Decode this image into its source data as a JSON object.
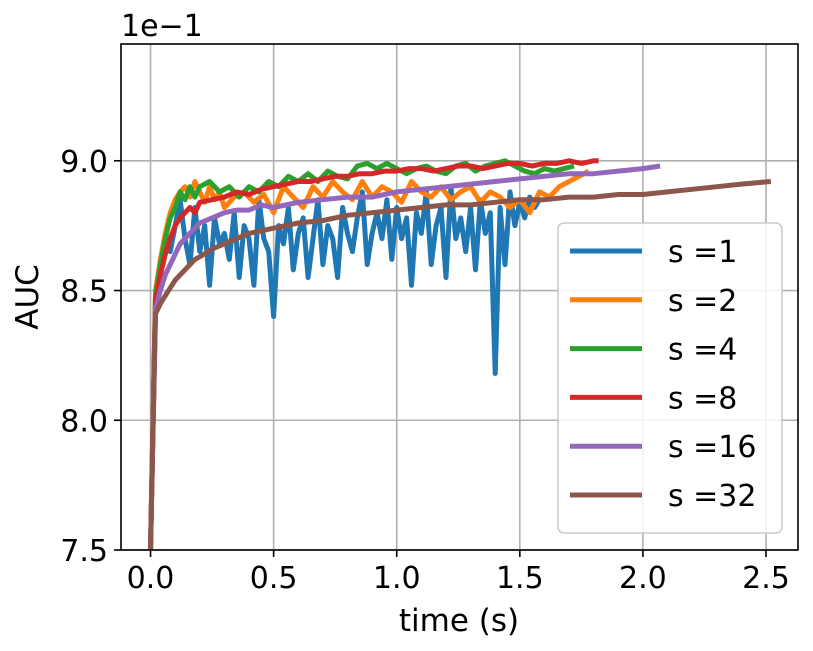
{
  "chart_data": {
    "type": "line",
    "title": "",
    "xlabel": "time (s)",
    "ylabel": "AUC",
    "y_offset_text": "1e−1",
    "xlim": [
      -0.12,
      2.63
    ],
    "ylim": [
      7.5,
      9.45
    ],
    "xticks": [
      0.0,
      0.5,
      1.0,
      1.5,
      2.0,
      2.5
    ],
    "xtick_labels": [
      "0.0",
      "0.5",
      "1.0",
      "1.5",
      "2.0",
      "2.5"
    ],
    "yticks": [
      7.5,
      8.0,
      8.5,
      9.0
    ],
    "ytick_labels": [
      "7.5",
      "8.0",
      "8.5",
      "9.0"
    ],
    "grid": true,
    "legend_position": "lower-right",
    "series": [
      {
        "name": "s =1",
        "color": "#1f77b4",
        "x": [
          0.0,
          0.02,
          0.04,
          0.06,
          0.08,
          0.1,
          0.12,
          0.14,
          0.16,
          0.18,
          0.2,
          0.22,
          0.24,
          0.26,
          0.28,
          0.3,
          0.32,
          0.34,
          0.36,
          0.38,
          0.4,
          0.42,
          0.44,
          0.46,
          0.48,
          0.5,
          0.52,
          0.54,
          0.56,
          0.58,
          0.6,
          0.62,
          0.64,
          0.66,
          0.68,
          0.7,
          0.72,
          0.74,
          0.76,
          0.78,
          0.8,
          0.82,
          0.84,
          0.86,
          0.88,
          0.9,
          0.92,
          0.94,
          0.96,
          0.98,
          1.0,
          1.02,
          1.04,
          1.06,
          1.08,
          1.1,
          1.12,
          1.14,
          1.16,
          1.18,
          1.2,
          1.22,
          1.24,
          1.26,
          1.28,
          1.3,
          1.32,
          1.34,
          1.36,
          1.38,
          1.4,
          1.42,
          1.44,
          1.46,
          1.48,
          1.5,
          1.52,
          1.54,
          1.56,
          1.58
        ],
        "y": [
          7.5,
          8.45,
          8.58,
          8.7,
          8.65,
          8.75,
          8.85,
          8.7,
          8.6,
          8.82,
          8.65,
          8.75,
          8.52,
          8.78,
          8.68,
          8.72,
          8.62,
          8.8,
          8.55,
          8.75,
          8.7,
          8.52,
          8.85,
          8.7,
          8.65,
          8.4,
          8.75,
          8.68,
          8.82,
          8.58,
          8.72,
          8.78,
          8.55,
          8.7,
          8.85,
          8.6,
          8.75,
          8.7,
          8.55,
          8.82,
          8.72,
          8.65,
          8.78,
          8.88,
          8.6,
          8.72,
          8.8,
          8.7,
          8.85,
          8.62,
          8.82,
          8.7,
          8.78,
          8.52,
          8.8,
          8.72,
          8.88,
          8.6,
          8.75,
          8.82,
          8.55,
          8.9,
          8.7,
          8.78,
          8.65,
          8.82,
          8.58,
          8.85,
          8.72,
          8.8,
          8.18,
          8.82,
          8.6,
          8.88,
          8.75,
          8.84,
          8.78,
          8.86,
          8.82,
          8.85
        ]
      },
      {
        "name": "s =2",
        "color": "#ff7f0e",
        "x": [
          0.0,
          0.02,
          0.04,
          0.06,
          0.08,
          0.1,
          0.12,
          0.14,
          0.16,
          0.18,
          0.2,
          0.22,
          0.24,
          0.26,
          0.28,
          0.3,
          0.34,
          0.38,
          0.42,
          0.46,
          0.5,
          0.54,
          0.58,
          0.62,
          0.66,
          0.7,
          0.74,
          0.78,
          0.82,
          0.86,
          0.9,
          0.94,
          0.98,
          1.02,
          1.06,
          1.1,
          1.14,
          1.18,
          1.22,
          1.26,
          1.3,
          1.34,
          1.38,
          1.42,
          1.46,
          1.5,
          1.54,
          1.58,
          1.62,
          1.66,
          1.7,
          1.74,
          1.78
        ],
        "y": [
          7.5,
          8.5,
          8.62,
          8.72,
          8.8,
          8.85,
          8.88,
          8.9,
          8.86,
          8.92,
          8.88,
          8.84,
          8.9,
          8.85,
          8.88,
          8.82,
          8.86,
          8.88,
          8.84,
          8.87,
          8.8,
          8.9,
          8.86,
          8.82,
          8.9,
          8.86,
          8.92,
          8.88,
          8.85,
          8.92,
          8.86,
          8.9,
          8.88,
          8.84,
          8.92,
          8.88,
          8.86,
          8.9,
          8.85,
          8.88,
          8.9,
          8.84,
          8.88,
          8.86,
          8.82,
          8.85,
          8.8,
          8.88,
          8.86,
          8.9,
          8.92,
          8.94,
          8.96
        ]
      },
      {
        "name": "s =4",
        "color": "#2ca02c",
        "x": [
          0.0,
          0.02,
          0.04,
          0.06,
          0.08,
          0.1,
          0.12,
          0.14,
          0.16,
          0.18,
          0.2,
          0.24,
          0.28,
          0.32,
          0.36,
          0.4,
          0.44,
          0.48,
          0.52,
          0.56,
          0.6,
          0.64,
          0.68,
          0.72,
          0.76,
          0.8,
          0.84,
          0.88,
          0.92,
          0.96,
          1.0,
          1.04,
          1.08,
          1.12,
          1.16,
          1.2,
          1.24,
          1.28,
          1.32,
          1.36,
          1.4,
          1.44,
          1.48,
          1.52,
          1.56,
          1.6,
          1.64,
          1.68,
          1.72
        ],
        "y": [
          7.5,
          8.48,
          8.6,
          8.7,
          8.78,
          8.82,
          8.88,
          8.85,
          8.9,
          8.86,
          8.9,
          8.92,
          8.88,
          8.9,
          8.86,
          8.9,
          8.88,
          8.92,
          8.9,
          8.94,
          8.92,
          8.95,
          8.92,
          8.96,
          8.94,
          8.93,
          8.98,
          8.99,
          8.97,
          8.99,
          8.97,
          8.95,
          8.97,
          8.98,
          8.96,
          8.95,
          8.98,
          8.99,
          8.96,
          8.98,
          8.99,
          9.0,
          8.98,
          8.96,
          8.95,
          8.97,
          8.96,
          8.97,
          8.98
        ]
      },
      {
        "name": "s =8",
        "color": "#d62728",
        "x": [
          0.0,
          0.02,
          0.04,
          0.06,
          0.08,
          0.1,
          0.12,
          0.14,
          0.16,
          0.18,
          0.2,
          0.25,
          0.3,
          0.35,
          0.4,
          0.45,
          0.5,
          0.55,
          0.6,
          0.65,
          0.7,
          0.75,
          0.8,
          0.85,
          0.9,
          0.95,
          1.0,
          1.05,
          1.1,
          1.15,
          1.2,
          1.25,
          1.3,
          1.35,
          1.4,
          1.45,
          1.5,
          1.55,
          1.6,
          1.65,
          1.7,
          1.75,
          1.8,
          1.82
        ],
        "y": [
          7.5,
          8.46,
          8.56,
          8.64,
          8.7,
          8.75,
          8.78,
          8.8,
          8.82,
          8.8,
          8.84,
          8.85,
          8.86,
          8.88,
          8.87,
          8.89,
          8.9,
          8.91,
          8.92,
          8.92,
          8.93,
          8.94,
          8.94,
          8.95,
          8.95,
          8.96,
          8.96,
          8.97,
          8.97,
          8.96,
          8.97,
          8.98,
          8.98,
          8.97,
          8.98,
          8.99,
          8.99,
          8.98,
          8.99,
          8.99,
          9.0,
          8.99,
          9.0,
          9.0
        ]
      },
      {
        "name": "s =16",
        "color": "#9467bd",
        "x": [
          0.0,
          0.02,
          0.04,
          0.06,
          0.08,
          0.1,
          0.12,
          0.14,
          0.16,
          0.18,
          0.2,
          0.25,
          0.3,
          0.35,
          0.4,
          0.45,
          0.5,
          0.6,
          0.7,
          0.8,
          0.9,
          1.0,
          1.1,
          1.2,
          1.3,
          1.4,
          1.5,
          1.6,
          1.7,
          1.8,
          1.9,
          2.0,
          2.07
        ],
        "y": [
          7.5,
          8.43,
          8.5,
          8.56,
          8.6,
          8.64,
          8.68,
          8.7,
          8.72,
          8.74,
          8.76,
          8.78,
          8.8,
          8.81,
          8.81,
          8.83,
          8.82,
          8.84,
          8.85,
          8.86,
          8.86,
          8.88,
          8.89,
          8.9,
          8.91,
          8.92,
          8.93,
          8.94,
          8.95,
          8.95,
          8.96,
          8.97,
          8.98
        ]
      },
      {
        "name": "s =32",
        "color": "#8c564b",
        "x": [
          0.0,
          0.02,
          0.04,
          0.06,
          0.08,
          0.1,
          0.12,
          0.14,
          0.16,
          0.18,
          0.2,
          0.25,
          0.3,
          0.35,
          0.4,
          0.5,
          0.6,
          0.7,
          0.8,
          0.9,
          1.0,
          1.1,
          1.2,
          1.3,
          1.4,
          1.5,
          1.6,
          1.7,
          1.8,
          1.9,
          2.0,
          2.1,
          2.2,
          2.3,
          2.4,
          2.52
        ],
        "y": [
          7.5,
          8.41,
          8.45,
          8.48,
          8.51,
          8.54,
          8.56,
          8.58,
          8.6,
          8.62,
          8.63,
          8.66,
          8.68,
          8.7,
          8.72,
          8.74,
          8.76,
          8.77,
          8.79,
          8.8,
          8.81,
          8.82,
          8.83,
          8.83,
          8.84,
          8.85,
          8.85,
          8.86,
          8.86,
          8.87,
          8.87,
          8.88,
          8.89,
          8.9,
          8.91,
          8.92
        ]
      }
    ]
  }
}
